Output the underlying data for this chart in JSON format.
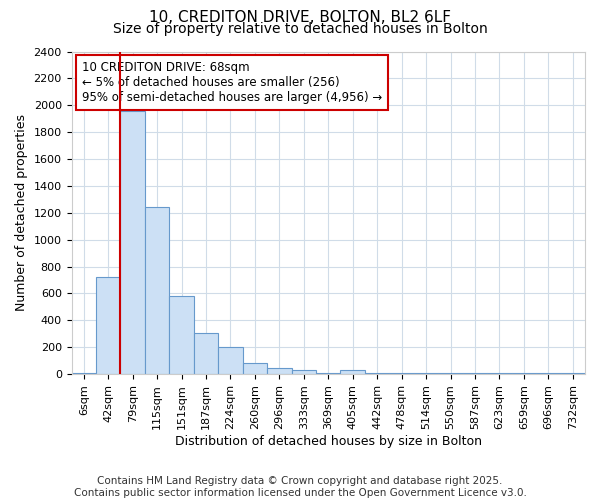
{
  "title_line1": "10, CREDITON DRIVE, BOLTON, BL2 6LF",
  "title_line2": "Size of property relative to detached houses in Bolton",
  "xlabel": "Distribution of detached houses by size in Bolton",
  "ylabel": "Number of detached properties",
  "bar_labels": [
    "6sqm",
    "42sqm",
    "79sqm",
    "115sqm",
    "151sqm",
    "187sqm",
    "224sqm",
    "260sqm",
    "296sqm",
    "333sqm",
    "369sqm",
    "405sqm",
    "442sqm",
    "478sqm",
    "514sqm",
    "550sqm",
    "587sqm",
    "623sqm",
    "659sqm",
    "696sqm",
    "732sqm"
  ],
  "bar_heights": [
    10,
    720,
    1960,
    1240,
    580,
    305,
    205,
    80,
    45,
    30,
    5,
    30,
    5,
    5,
    5,
    5,
    10,
    5,
    5,
    5,
    5
  ],
  "bar_color": "#cce0f5",
  "bar_edge_color": "#6699cc",
  "vline_x_index": 2,
  "vline_color": "#cc0000",
  "ylim": [
    0,
    2400
  ],
  "yticks": [
    0,
    200,
    400,
    600,
    800,
    1000,
    1200,
    1400,
    1600,
    1800,
    2000,
    2200,
    2400
  ],
  "annotation_title": "10 CREDITON DRIVE: 68sqm",
  "annotation_line2": "← 5% of detached houses are smaller (256)",
  "annotation_line3": "95% of semi-detached houses are larger (4,956) →",
  "annotation_box_color": "#ffffff",
  "annotation_box_edge": "#cc0000",
  "footer_line1": "Contains HM Land Registry data © Crown copyright and database right 2025.",
  "footer_line2": "Contains public sector information licensed under the Open Government Licence v3.0.",
  "bg_color": "#ffffff",
  "grid_color": "#d0dce8",
  "title_fontsize": 11,
  "subtitle_fontsize": 10,
  "axis_label_fontsize": 9,
  "tick_fontsize": 8,
  "footer_fontsize": 7.5,
  "annotation_fontsize": 8.5
}
